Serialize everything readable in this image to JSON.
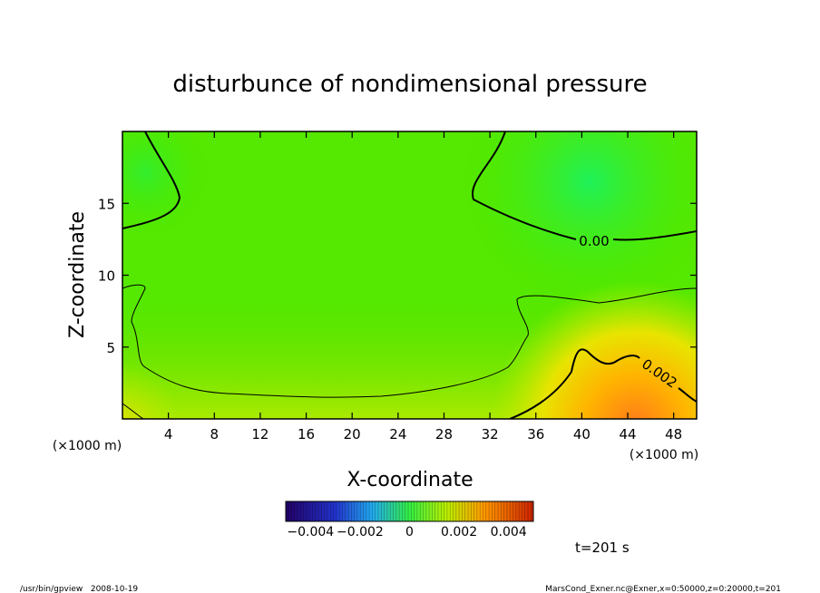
{
  "chart_data": {
    "type": "heatmap",
    "title": "disturbunce of nondimensional pressure",
    "xlabel": "X-coordinate",
    "ylabel": "Z-coordinate",
    "x_unit": "(×1000 m)",
    "y_unit": "(×1000 m)",
    "xlim": [
      0,
      50
    ],
    "ylim": [
      0,
      20
    ],
    "xticks": [
      4,
      8,
      12,
      16,
      20,
      24,
      28,
      32,
      36,
      40,
      44,
      48
    ],
    "yticks": [
      5,
      10,
      15
    ],
    "contour_labels": [
      {
        "text": "0.00",
        "x": 40.5,
        "y": 12.5
      },
      {
        "text": "0.002",
        "x": 46.2,
        "y": 3.2
      }
    ],
    "colorbar": {
      "range": [
        -0.005,
        0.005
      ],
      "tick_labels": [
        "−0.004",
        "−0.002",
        "0",
        "0.002",
        "0.004"
      ],
      "tick_values": [
        -0.004,
        -0.002,
        0,
        0.002,
        0.004
      ]
    },
    "time_label": "t=201 s",
    "grid": false
  },
  "footer": {
    "left": "/usr/bin/gpview   2008-10-19",
    "right": "MarsCond_Exner.nc@Exner,x=0:50000,z=0:20000,t=201"
  }
}
